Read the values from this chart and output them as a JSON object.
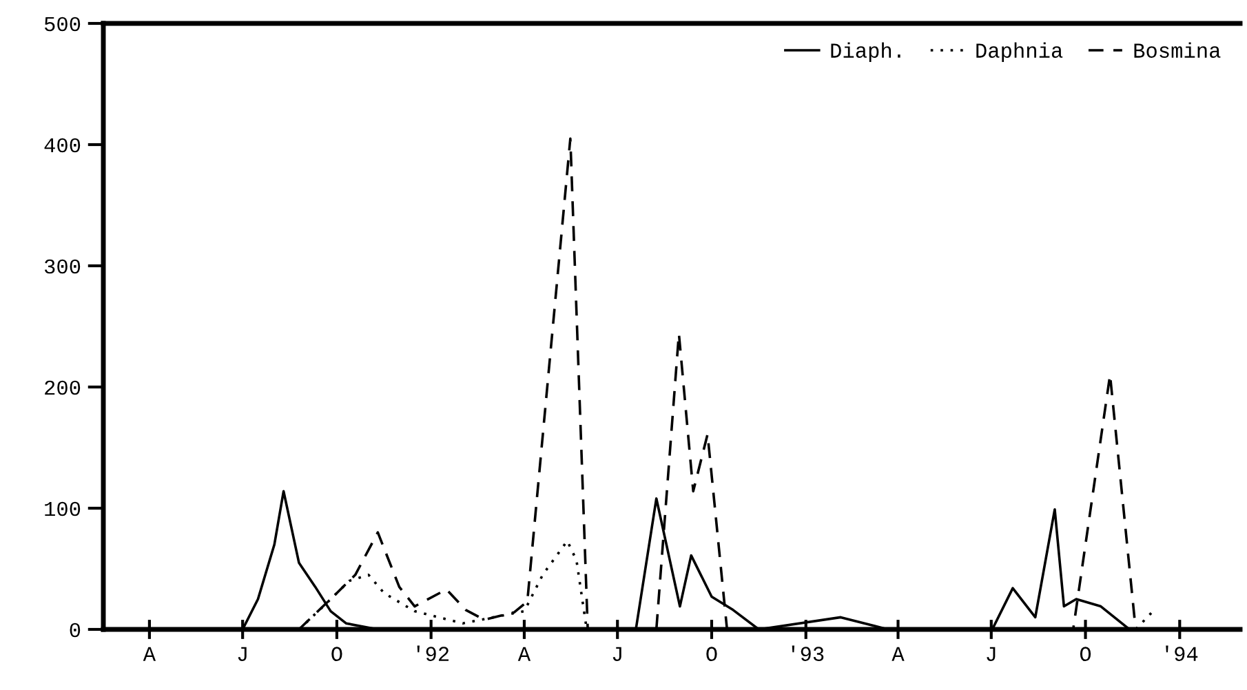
{
  "chart_data": {
    "type": "line",
    "xlim": [
      "1991-02-15",
      "1994-03-01"
    ],
    "ylim": [
      0,
      500
    ],
    "xticks": [
      {
        "value": "1991-04",
        "label": "A"
      },
      {
        "value": "1991-07",
        "label": "J"
      },
      {
        "value": "1991-10",
        "label": "O"
      },
      {
        "value": "1992-01",
        "label": "'92"
      },
      {
        "value": "1992-04",
        "label": "A"
      },
      {
        "value": "1992-07",
        "label": "J"
      },
      {
        "value": "1992-10",
        "label": "O"
      },
      {
        "value": "1993-01",
        "label": "'93"
      },
      {
        "value": "1993-04",
        "label": "A"
      },
      {
        "value": "1993-07",
        "label": "J"
      },
      {
        "value": "1993-10",
        "label": "O"
      },
      {
        "value": "1994-01",
        "label": "'94"
      }
    ],
    "yticks": [
      0,
      100,
      200,
      300,
      400,
      500
    ],
    "grid": false,
    "legend": "top right",
    "series": [
      {
        "name": "Diaph.",
        "color": "#000000",
        "line_style": "solid",
        "x": [
          "1991-07-01",
          "1991-07-16",
          "1991-08-01",
          "1991-08-10",
          "1991-08-25",
          "1991-09-10",
          "1991-09-25",
          "1991-10-10",
          "1991-11-10",
          "1992-07-19",
          "1992-08-08",
          "1992-08-31",
          "1992-09-11",
          "1992-10-01",
          "1992-10-22",
          "1992-11-16",
          "1993-02-04",
          "1993-03-22",
          "1993-07-02",
          "1993-07-22",
          "1993-08-13",
          "1993-09-01",
          "1993-09-10",
          "1993-09-22",
          "1993-10-16",
          "1993-11-13"
        ],
        "values": [
          0,
          25,
          70,
          114,
          55,
          35,
          15,
          5,
          0,
          0,
          108,
          19,
          61,
          27,
          16,
          0,
          10,
          0,
          0,
          34,
          10,
          99,
          19,
          25,
          19,
          0
        ]
      },
      {
        "name": "Daphnia",
        "color": "#000000",
        "line_style": "dotted",
        "x": [
          "1991-08-25",
          "1991-09-19",
          "1991-10-13",
          "1991-11-01",
          "1991-11-16",
          "1991-12-16",
          "1992-02-01",
          "1992-04-01",
          "1992-04-19",
          "1992-05-13",
          "1992-05-22",
          "1992-06-01",
          "1993-11-19",
          "1993-12-07"
        ],
        "values": [
          0,
          20,
          40,
          45,
          30,
          15,
          5,
          15,
          45,
          73,
          57,
          0,
          0,
          16
        ]
      },
      {
        "name": "Bosmina",
        "color": "#000000",
        "line_style": "dashed",
        "x": [
          "1991-08-25",
          "1991-10-01",
          "1991-10-19",
          "1991-11-10",
          "1991-12-01",
          "1991-12-16",
          "1992-01-16",
          "1992-02-04",
          "1992-02-22",
          "1992-03-22",
          "1992-04-04",
          "1992-05-16",
          "1992-06-02",
          "1992-08-08",
          "1992-08-30",
          "1992-09-13",
          "1992-09-27",
          "1992-10-16",
          "1993-09-19",
          "1993-10-25",
          "1993-11-19"
        ],
        "values": [
          0,
          30,
          45,
          80,
          35,
          19,
          33,
          16,
          8,
          14,
          23,
          405,
          0,
          0,
          244,
          114,
          161,
          0,
          0,
          210,
          0
        ]
      }
    ]
  }
}
